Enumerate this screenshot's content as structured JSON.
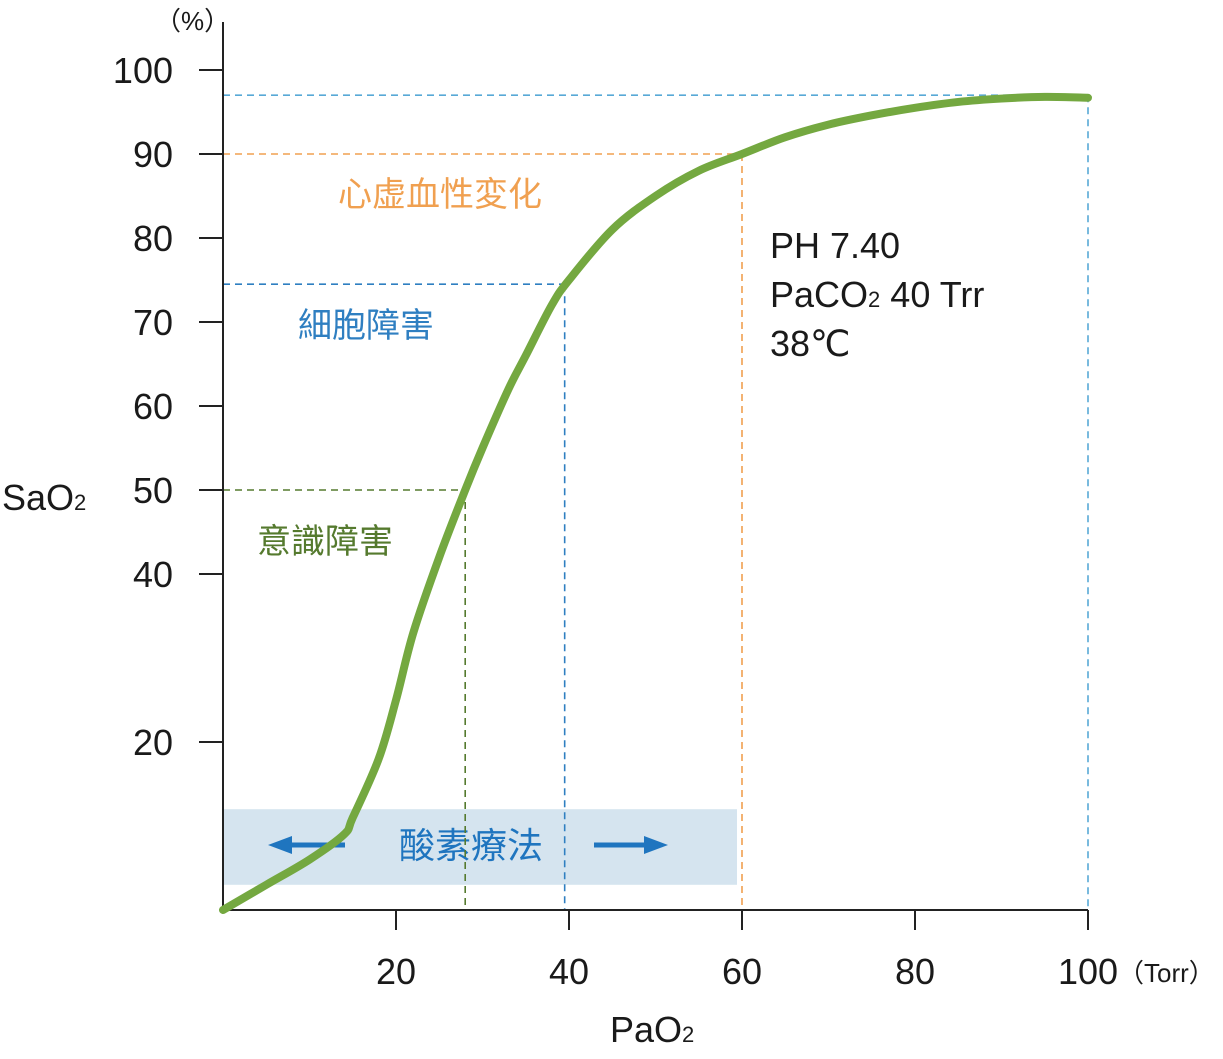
{
  "chart_data": {
    "type": "line",
    "xlabel": "PaO",
    "xlabel_sub": "2",
    "x_unit": "（Torr）",
    "ylabel": "SaO",
    "ylabel_sub": "2",
    "y_unit": "（%）",
    "xlim": [
      0,
      100
    ],
    "ylim": [
      0,
      100
    ],
    "x_ticks": [
      20,
      40,
      60,
      80,
      100
    ],
    "y_ticks": [
      20,
      40,
      50,
      60,
      70,
      80,
      90,
      100
    ],
    "grid": false,
    "series": [
      {
        "color": "#74a840",
        "x": [
          0,
          5,
          10,
          14,
          15,
          18,
          20,
          22,
          25,
          28,
          30,
          33,
          35,
          38,
          40,
          45,
          50,
          55,
          60,
          65,
          70,
          75,
          80,
          85,
          90,
          95,
          100
        ],
        "y": [
          0,
          3,
          6,
          9,
          11,
          18,
          25,
          33,
          42,
          50,
          55,
          62,
          66,
          72,
          75,
          81,
          85,
          88,
          90,
          92,
          93.5,
          94.6,
          95.5,
          96.2,
          96.6,
          96.8,
          96.7
        ]
      }
    ],
    "reference_lines": [
      {
        "label": "意識障害",
        "x": 28,
        "y": 50,
        "color": "#557a2e"
      },
      {
        "label": "細胞障害",
        "x": 39.5,
        "y": 74.5,
        "color": "#2f7fc1"
      },
      {
        "label": "心虚血性変化",
        "x": 60,
        "y": 90,
        "color": "#f0a050"
      },
      {
        "label": "",
        "x": 100,
        "y": 97,
        "color": "#58a9d6"
      }
    ],
    "oxygen_therapy": {
      "label": "酸素療法",
      "x_range": [
        0,
        60
      ],
      "y_range": [
        3,
        12
      ]
    },
    "conditions": [
      "PH 7.40",
      "PaCO",
      "2",
      " 40 Trr",
      "38℃"
    ]
  }
}
